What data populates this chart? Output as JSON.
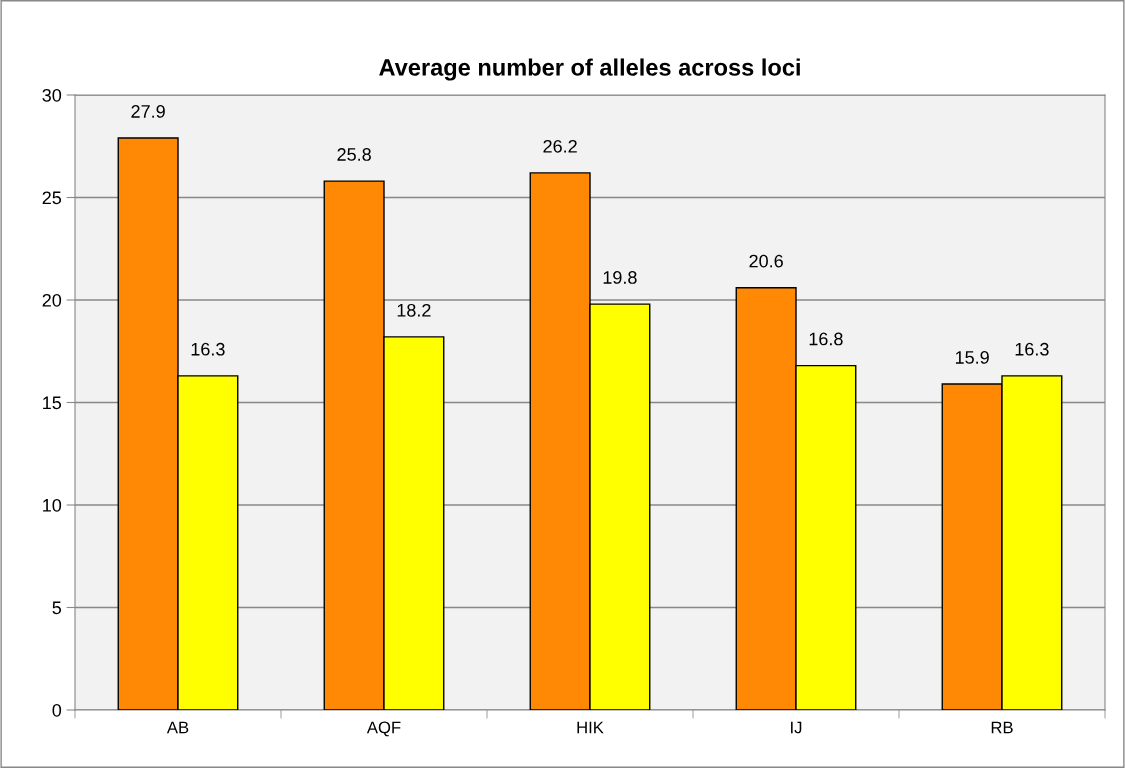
{
  "chart_data": {
    "type": "bar",
    "title": "Average number of alleles across loci",
    "categories": [
      "AB",
      "AQF",
      "HIK",
      "IJ",
      "RB"
    ],
    "series": [
      {
        "color": "#ff8804",
        "values": [
          27.9,
          25.8,
          26.2,
          20.6,
          15.9
        ]
      },
      {
        "color": "#ffff00",
        "values": [
          16.3,
          18.2,
          19.8,
          16.8,
          16.3
        ]
      }
    ],
    "ylim": [
      0,
      30
    ],
    "yticks": [
      0,
      5,
      10,
      15,
      20,
      25,
      30
    ],
    "grid": "y",
    "data_labels": true
  }
}
